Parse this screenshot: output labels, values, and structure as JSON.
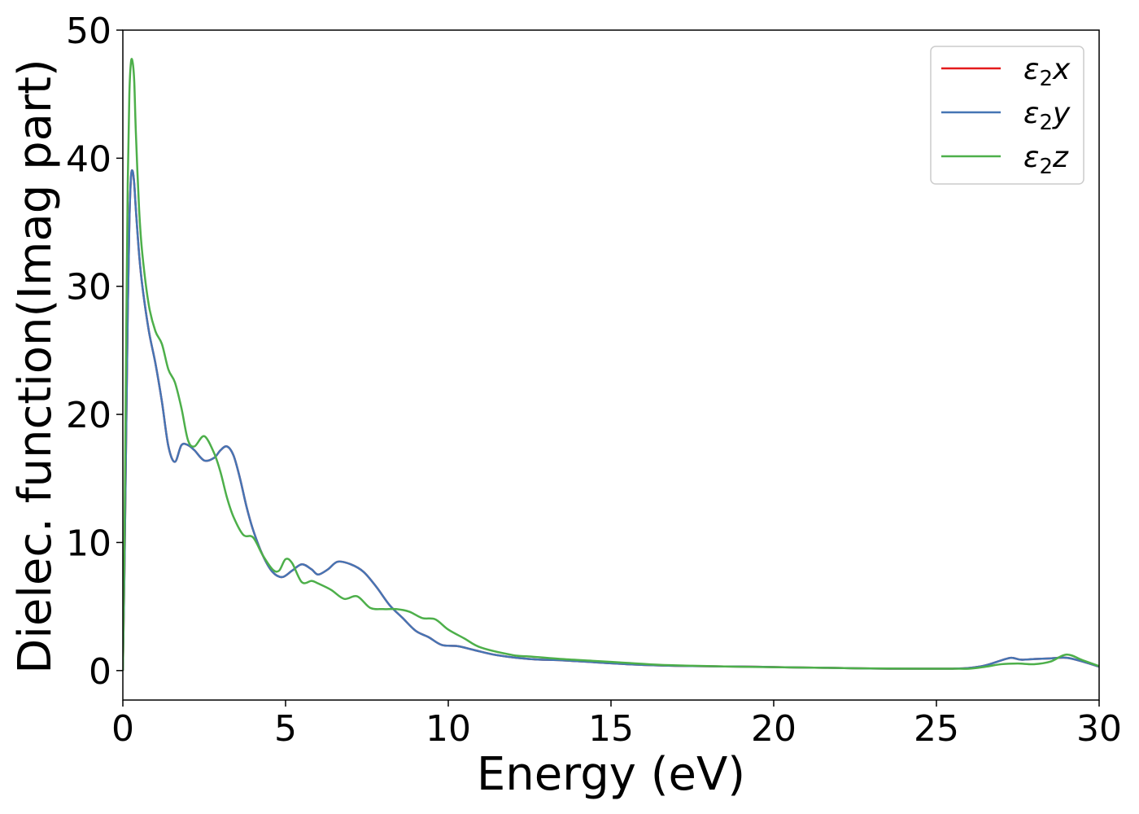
{
  "chart_data": {
    "type": "line",
    "title": "",
    "xlabel": "Energy (eV)",
    "ylabel": "Dielec. function(Imag part)",
    "xlim": [
      0,
      30
    ],
    "ylim": [
      -2.3,
      50
    ],
    "xticks": [
      "0",
      "5",
      "10",
      "15",
      "20",
      "25",
      "30"
    ],
    "yticks": [
      "0",
      "10",
      "20",
      "30",
      "40",
      "50"
    ],
    "grid": false,
    "legend_position": "top-right",
    "series": [
      {
        "name": "ε₂x",
        "legend_symbol": "ε",
        "legend_sub": "2",
        "legend_var": "x",
        "color": "#e41a1c",
        "x": [
          0,
          0.05,
          0.1,
          0.15,
          0.2,
          0.25,
          0.3,
          0.35,
          0.4,
          0.5,
          0.6,
          0.8,
          1.0,
          1.2,
          1.4,
          1.6,
          1.8,
          2.0,
          2.2,
          2.5,
          2.8,
          3.0,
          3.2,
          3.4,
          3.6,
          3.8,
          4.0,
          4.3,
          4.6,
          4.9,
          5.2,
          5.5,
          5.8,
          6.0,
          6.3,
          6.6,
          7.0,
          7.4,
          7.8,
          8.2,
          8.6,
          9.0,
          9.4,
          9.8,
          10.3,
          10.8,
          11.5,
          12.5,
          13.5,
          14.5,
          15.5,
          16.5,
          17.5,
          18.5,
          19.5,
          20.5,
          21.5,
          22.5,
          23.5,
          24.5,
          25.5,
          26.0,
          26.5,
          27.0,
          27.3,
          27.6,
          28.0,
          28.5,
          29.0,
          29.5,
          30.0
        ],
        "values": [
          0,
          8,
          18,
          28,
          35,
          38.5,
          39,
          38,
          36,
          32.5,
          30,
          26.5,
          24,
          21,
          17.5,
          16.3,
          17.6,
          17.6,
          17.2,
          16.4,
          16.6,
          17.2,
          17.5,
          16.8,
          15.0,
          12.8,
          11.0,
          9.0,
          7.7,
          7.3,
          7.8,
          8.3,
          7.9,
          7.5,
          7.9,
          8.5,
          8.3,
          7.7,
          6.5,
          5.1,
          4.1,
          3.1,
          2.6,
          2.0,
          1.9,
          1.6,
          1.2,
          0.9,
          0.8,
          0.65,
          0.5,
          0.4,
          0.35,
          0.32,
          0.3,
          0.25,
          0.22,
          0.18,
          0.15,
          0.15,
          0.15,
          0.2,
          0.4,
          0.8,
          1.0,
          0.85,
          0.9,
          0.95,
          1.0,
          0.7,
          0.3
        ]
      },
      {
        "name": "ε₂y",
        "legend_symbol": "ε",
        "legend_sub": "2",
        "legend_var": "y",
        "color": "#4575b4",
        "x": [
          0,
          0.05,
          0.1,
          0.15,
          0.2,
          0.25,
          0.3,
          0.35,
          0.4,
          0.5,
          0.6,
          0.8,
          1.0,
          1.2,
          1.4,
          1.6,
          1.8,
          2.0,
          2.2,
          2.5,
          2.8,
          3.0,
          3.2,
          3.4,
          3.6,
          3.8,
          4.0,
          4.3,
          4.6,
          4.9,
          5.2,
          5.5,
          5.8,
          6.0,
          6.3,
          6.6,
          7.0,
          7.4,
          7.8,
          8.2,
          8.6,
          9.0,
          9.4,
          9.8,
          10.3,
          10.8,
          11.5,
          12.5,
          13.5,
          14.5,
          15.5,
          16.5,
          17.5,
          18.5,
          19.5,
          20.5,
          21.5,
          22.5,
          23.5,
          24.5,
          25.5,
          26.0,
          26.5,
          27.0,
          27.3,
          27.6,
          28.0,
          28.5,
          29.0,
          29.5,
          30.0
        ],
        "values": [
          0,
          8,
          18,
          28,
          35,
          38.5,
          39,
          38,
          36,
          32.5,
          30,
          26.5,
          24,
          21,
          17.5,
          16.3,
          17.6,
          17.6,
          17.2,
          16.4,
          16.6,
          17.2,
          17.5,
          16.8,
          15.0,
          12.8,
          11.0,
          9.0,
          7.7,
          7.3,
          7.8,
          8.3,
          7.9,
          7.5,
          7.9,
          8.5,
          8.3,
          7.7,
          6.5,
          5.1,
          4.1,
          3.1,
          2.6,
          2.0,
          1.9,
          1.6,
          1.2,
          0.9,
          0.8,
          0.65,
          0.5,
          0.4,
          0.35,
          0.32,
          0.3,
          0.25,
          0.22,
          0.18,
          0.15,
          0.15,
          0.15,
          0.2,
          0.4,
          0.8,
          1.0,
          0.85,
          0.9,
          0.95,
          1.0,
          0.7,
          0.3
        ]
      },
      {
        "name": "ε₂z",
        "legend_symbol": "ε",
        "legend_sub": "2",
        "legend_var": "z",
        "color": "#4daf4a",
        "x": [
          0,
          0.05,
          0.1,
          0.15,
          0.2,
          0.25,
          0.3,
          0.35,
          0.4,
          0.5,
          0.6,
          0.8,
          1.0,
          1.2,
          1.4,
          1.6,
          1.8,
          2.0,
          2.2,
          2.5,
          2.8,
          3.0,
          3.2,
          3.4,
          3.7,
          4.0,
          4.3,
          4.6,
          4.8,
          5.0,
          5.2,
          5.5,
          5.8,
          6.0,
          6.4,
          6.8,
          7.2,
          7.6,
          8.0,
          8.4,
          8.8,
          9.2,
          9.6,
          10.0,
          10.5,
          11.0,
          12.0,
          12.5,
          13.5,
          14.5,
          15.5,
          16.5,
          17.5,
          18.5,
          19.5,
          20.5,
          21.5,
          22.5,
          23.5,
          24.5,
          25.5,
          26.0,
          26.5,
          27.0,
          27.5,
          28.0,
          28.5,
          29.0,
          29.5,
          30.0
        ],
        "values": [
          0,
          10,
          25,
          38,
          45,
          47.5,
          47.5,
          46,
          42,
          36,
          32.5,
          28.5,
          26.5,
          25.5,
          23.5,
          22.5,
          20.5,
          18.0,
          17.5,
          18.3,
          17.0,
          15.5,
          13.5,
          12.0,
          10.6,
          10.4,
          9.0,
          7.9,
          7.8,
          8.7,
          8.4,
          6.9,
          7.0,
          6.8,
          6.3,
          5.6,
          5.8,
          4.9,
          4.8,
          4.8,
          4.6,
          4.1,
          4.0,
          3.2,
          2.5,
          1.8,
          1.2,
          1.1,
          0.9,
          0.75,
          0.6,
          0.45,
          0.38,
          0.32,
          0.28,
          0.25,
          0.22,
          0.18,
          0.16,
          0.15,
          0.15,
          0.15,
          0.3,
          0.5,
          0.55,
          0.5,
          0.7,
          1.25,
          0.8,
          0.35
        ]
      }
    ]
  }
}
